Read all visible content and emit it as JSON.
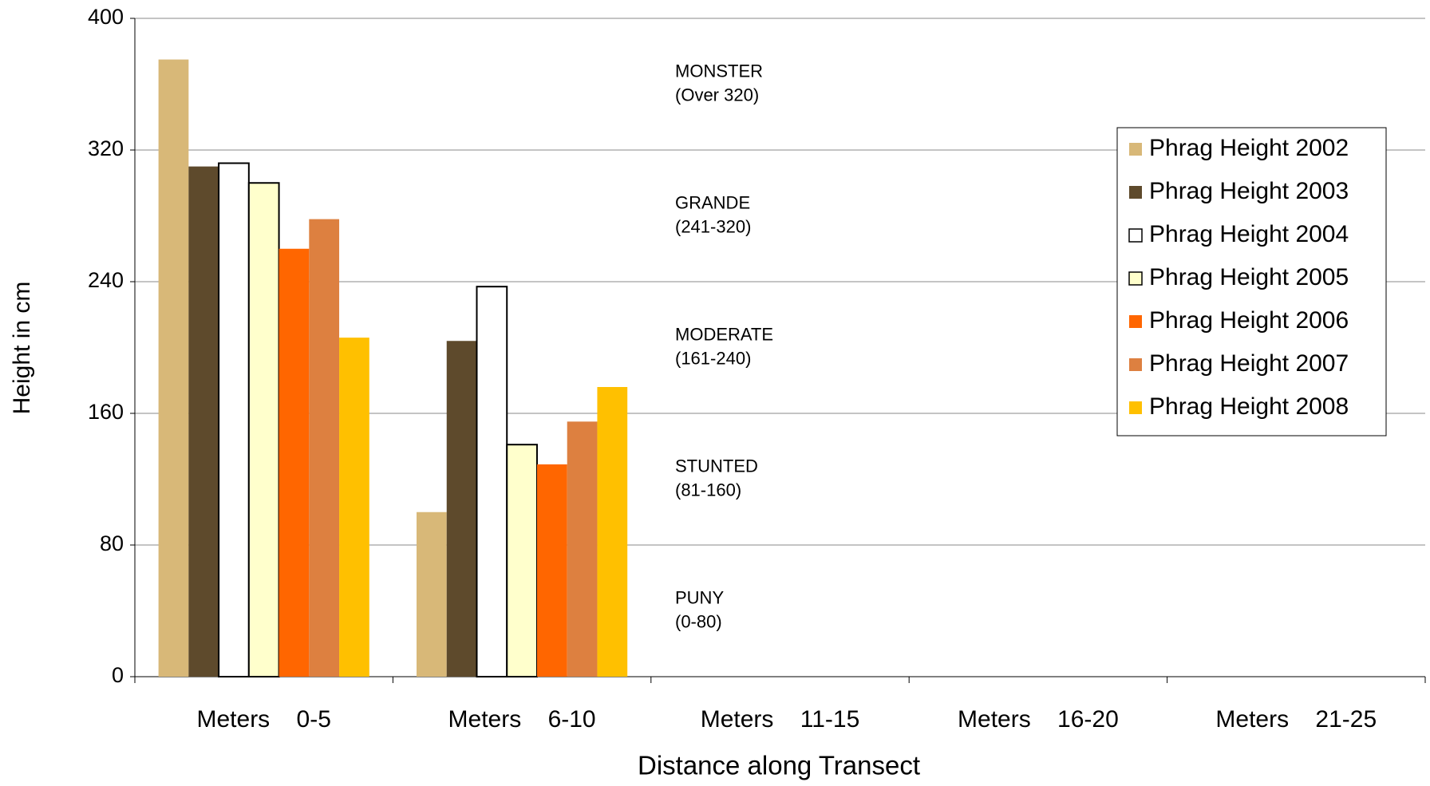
{
  "chart_data": {
    "type": "bar",
    "x_label": "Distance along Transect",
    "y_label": "Height in cm",
    "categories": [
      "Meters    0-5",
      "Meters    6-10",
      "Meters    11-15",
      "Meters    16-20",
      "Meters    21-25"
    ],
    "series": [
      {
        "name": "Phrag Height 2002",
        "color": "#d8b878",
        "values": [
          375,
          100,
          null,
          null,
          null
        ]
      },
      {
        "name": "Phrag Height 2003",
        "color": "#5e4a2c",
        "values": [
          310,
          204,
          null,
          null,
          null
        ]
      },
      {
        "name": "Phrag Height 2004",
        "color": "#ffffff",
        "edgecolor": "#000000",
        "values": [
          312,
          237,
          null,
          null,
          null
        ]
      },
      {
        "name": "Phrag Height 2005",
        "color": "#ffffcc",
        "edgecolor": "#000000",
        "values": [
          300,
          141,
          null,
          null,
          null
        ]
      },
      {
        "name": "Phrag Height 2006",
        "color": "#ff6600",
        "values": [
          260,
          129,
          null,
          null,
          null
        ]
      },
      {
        "name": "Phrag Height 2007",
        "color": "#dd8040",
        "values": [
          278,
          155,
          null,
          null,
          null
        ]
      },
      {
        "name": "Phrag Height 2008",
        "color": "#ffc000",
        "values": [
          206,
          176,
          null,
          null,
          null
        ]
      }
    ],
    "annotations": [
      {
        "title": "MONSTER",
        "range": "(Over 320)"
      },
      {
        "title": "GRANDE",
        "range": "(241-320)"
      },
      {
        "title": "MODERATE",
        "range": "(161-240)"
      },
      {
        "title": "STUNTED",
        "range": "(81-160)"
      },
      {
        "title": "PUNY",
        "range": "(0-80)"
      }
    ],
    "ylim": [
      0,
      400
    ],
    "yticks": [
      0,
      80,
      160,
      240,
      320,
      400
    ],
    "grid": true,
    "legend": "right"
  }
}
